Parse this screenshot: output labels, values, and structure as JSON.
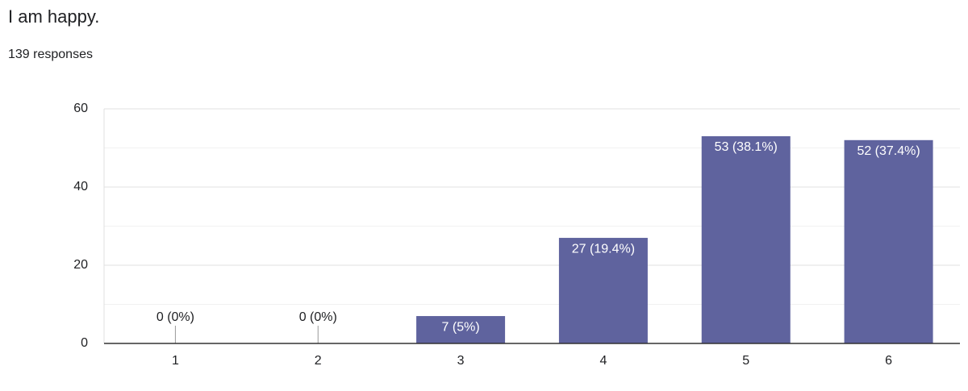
{
  "chart_data": {
    "type": "bar",
    "title": "I am happy.",
    "subtitle": "139 responses",
    "categories": [
      "1",
      "2",
      "3",
      "4",
      "5",
      "6"
    ],
    "values": [
      0,
      0,
      7,
      27,
      53,
      52
    ],
    "value_labels": [
      "0 (0%)",
      "0 (0%)",
      "7 (5%)",
      "27 (19.4%)",
      "53 (38.1%)",
      "52 (37.4%)"
    ],
    "color": "#5f639e",
    "ylim": [
      0,
      60
    ],
    "yticks": [
      0,
      20,
      40,
      60
    ],
    "minor_yticks": [
      10,
      30,
      50
    ],
    "grid": true
  }
}
